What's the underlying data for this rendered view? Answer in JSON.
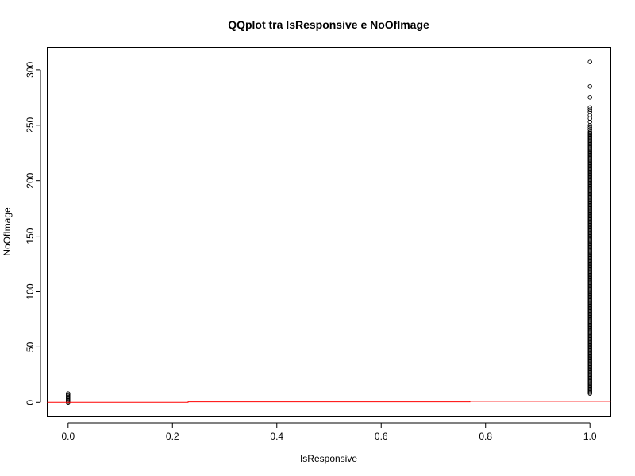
{
  "chart_data": {
    "type": "scatter",
    "title": "QQplot tra IsResponsive e NoOfImage",
    "xlabel": "IsResponsive",
    "ylabel": "NoOfImage",
    "xlim": [
      -0.04,
      1.04
    ],
    "ylim": [
      -12.3,
      320.3
    ],
    "x_ticks": [
      0.0,
      0.2,
      0.4,
      0.6,
      0.8,
      1.0
    ],
    "x_tick_labels": [
      "0.0",
      "0.2",
      "0.4",
      "0.6",
      "0.8",
      "1.0"
    ],
    "y_ticks": [
      0,
      50,
      100,
      150,
      200,
      250,
      300
    ],
    "y_tick_labels": [
      "0",
      "50",
      "100",
      "150",
      "200",
      "250",
      "300"
    ],
    "grid": false,
    "colors": {
      "points": "#000000",
      "reference_line": "#ff0000"
    },
    "series": [
      {
        "type": "points",
        "groups": [
          {
            "x": 0,
            "y_values": [
              0,
              1,
              2,
              3,
              4,
              5,
              6,
              7,
              8
            ]
          },
          {
            "x": 1,
            "y_min": 8,
            "y_dense_max": 243,
            "y_values": [
              244,
              246,
              248,
              250,
              253,
              256,
              259,
              262,
              264,
              266,
              275,
              285,
              307
            ]
          }
        ]
      },
      {
        "type": "line",
        "points": [
          [
            -0.04,
            0
          ],
          [
            0.23,
            0
          ],
          [
            0.23,
            0.5
          ],
          [
            0.77,
            0.5
          ],
          [
            0.77,
            1
          ],
          [
            1.04,
            1
          ]
        ]
      }
    ]
  }
}
